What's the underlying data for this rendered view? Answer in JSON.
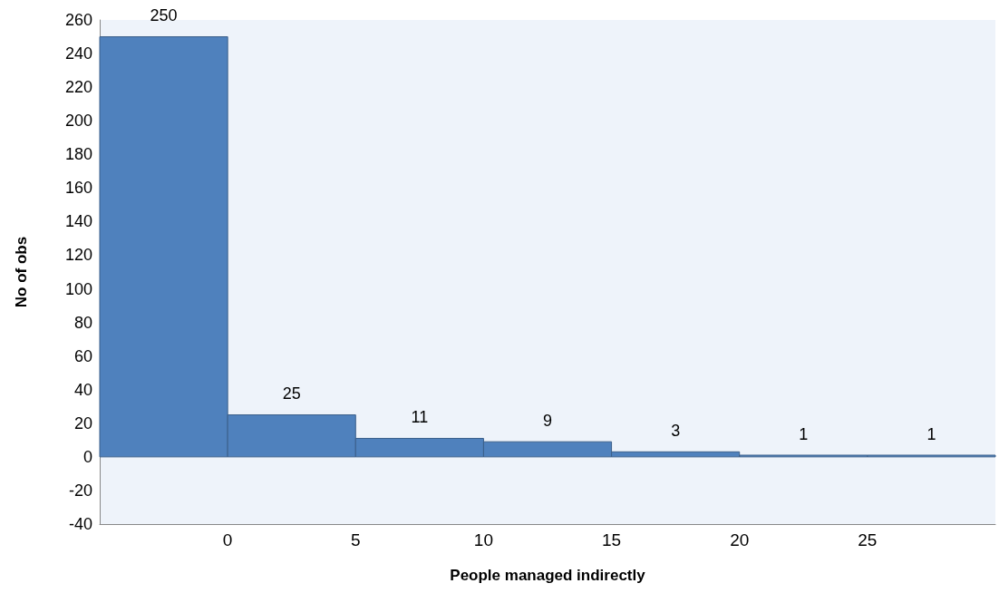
{
  "chart_data": {
    "type": "histogram",
    "xlabel": "People managed indirectly",
    "ylabel": "No of obs",
    "bins": [
      -5,
      0,
      5,
      10,
      15,
      20,
      25,
      30
    ],
    "values": [
      250,
      25,
      11,
      9,
      3,
      1,
      1
    ],
    "color": "#4f81bd",
    "xlim": [
      -5,
      30
    ],
    "xticks": [
      0,
      5,
      10,
      15,
      20,
      25
    ],
    "ylim": [
      -40,
      260
    ],
    "yticks": [
      -40,
      -20,
      0,
      20,
      40,
      60,
      80,
      100,
      120,
      140,
      160,
      180,
      200,
      220,
      240,
      260
    ],
    "grid": false,
    "data_labels": true
  }
}
